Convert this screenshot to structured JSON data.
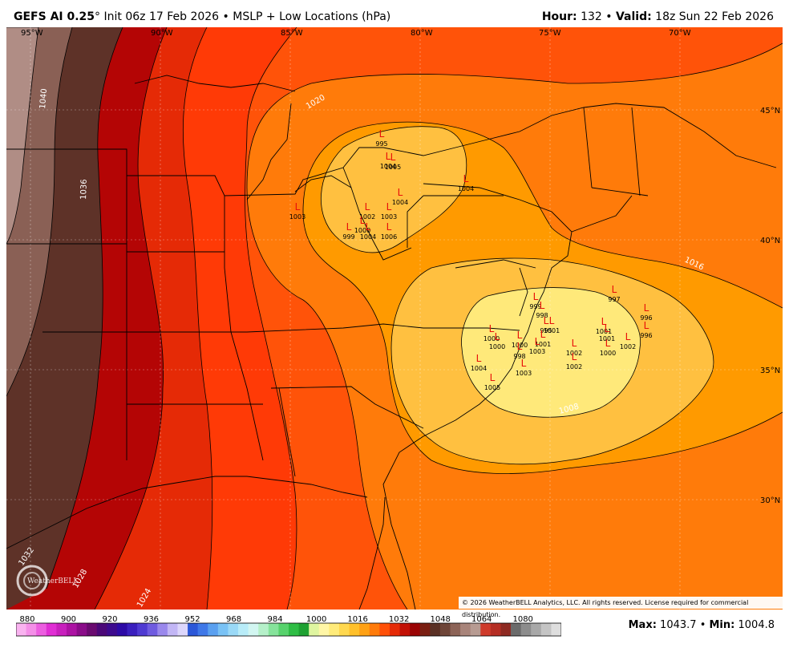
{
  "header": {
    "model": "GEFS AI 0.25",
    "degree": "°",
    "init": "Init 06z 17 Feb 2026",
    "bullet": "•",
    "field": "MSLP + Low Locations (hPa)",
    "hour_label": "Hour:",
    "hour_value": "132",
    "valid_label": "Valid:",
    "valid_value": "18z Sun 22 Feb 2026"
  },
  "longitudes": [
    "95°W",
    "90°W",
    "85°W",
    "80°W",
    "75°W",
    "70°W"
  ],
  "latitudes": [
    "45°N",
    "40°N",
    "35°N",
    "30°N"
  ],
  "isobar_labels": [
    "1040",
    "1036",
    "1032",
    "1028",
    "1024",
    "1020",
    "1016",
    "1008"
  ],
  "lows": [
    {
      "marker": "L",
      "value": "995"
    },
    {
      "marker": "L",
      "value": "1004"
    },
    {
      "marker": "L",
      "value": "1005"
    },
    {
      "marker": "L",
      "value": "1004"
    },
    {
      "marker": "L",
      "value": "996"
    },
    {
      "marker": "L",
      "value": "1003"
    },
    {
      "marker": "L",
      "value": "1002"
    },
    {
      "marker": "L",
      "value": "1003"
    },
    {
      "marker": "L",
      "value": "1004"
    },
    {
      "marker": "L",
      "value": "999"
    },
    {
      "marker": "L",
      "value": "1000"
    },
    {
      "marker": "L",
      "value": "1004"
    },
    {
      "marker": "L",
      "value": "1006"
    },
    {
      "marker": "L",
      "value": "997"
    },
    {
      "marker": "L",
      "value": "996"
    },
    {
      "marker": "L",
      "value": "999"
    },
    {
      "marker": "L",
      "value": "998"
    },
    {
      "marker": "L",
      "value": "995"
    },
    {
      "marker": "L",
      "value": "1001"
    },
    {
      "marker": "L",
      "value": "1002"
    },
    {
      "marker": "L",
      "value": "1000"
    },
    {
      "marker": "L",
      "value": "1001"
    },
    {
      "marker": "L",
      "value": "1001"
    },
    {
      "marker": "L",
      "value": "1002"
    },
    {
      "marker": "L",
      "value": "1002"
    },
    {
      "marker": "L",
      "value": "1000"
    },
    {
      "marker": "L",
      "value": "1000"
    },
    {
      "marker": "L",
      "value": "1000"
    },
    {
      "marker": "L",
      "value": "1001"
    },
    {
      "marker": "L",
      "value": "1003"
    },
    {
      "marker": "L",
      "value": "998"
    },
    {
      "marker": "L",
      "value": "1004"
    },
    {
      "marker": "L",
      "value": "1003"
    },
    {
      "marker": "L",
      "value": "1005"
    }
  ],
  "colorbar": {
    "ticks": [
      "880",
      "900",
      "920",
      "936",
      "952",
      "968",
      "984",
      "1000",
      "1016",
      "1032",
      "1048",
      "1064",
      "1080"
    ],
    "colors": [
      "#f9b3f0",
      "#f48fe8",
      "#ec5ee0",
      "#e02ed4",
      "#c81fbd",
      "#ac12a3",
      "#8a0c89",
      "#6a0a70",
      "#4b0878",
      "#3d0a8e",
      "#2d0aa6",
      "#3a1fbe",
      "#4f3ad2",
      "#6f5be0",
      "#9a88ec",
      "#c2b6f5",
      "#dcd6fb",
      "#2b57d8",
      "#3f78e8",
      "#5aa0f0",
      "#79c2f5",
      "#9ad9f7",
      "#b8ecf8",
      "#d2f6f1",
      "#b5f0c9",
      "#86e39b",
      "#57d26c",
      "#2fbd45",
      "#1ea132",
      "#dff5a0",
      "#fff6a6",
      "#ffeb7a",
      "#ffd84f",
      "#ffc02a",
      "#ffa114",
      "#ff7b0a",
      "#ff5008",
      "#e52a06",
      "#c21005",
      "#9a0304",
      "#7a1e12",
      "#5a3125",
      "#6e4538",
      "#8c6357",
      "#a8847a",
      "#b79b92",
      "#cf3b2b",
      "#b52e24",
      "#8e2a22",
      "#6b6b6b",
      "#8c8c8c",
      "#a8a8a8",
      "#c4c4c4",
      "#dedede"
    ]
  },
  "stats": {
    "max_label": "Max:",
    "max_value": "1043.7",
    "sep": "•",
    "min_label": "Min:",
    "min_value": "1004.8"
  },
  "copyright": "© 2026 WeatherBELL Analytics, LLC. All rights reserved. License required for commercial distribution.",
  "logo_text": "WeatherBELL"
}
